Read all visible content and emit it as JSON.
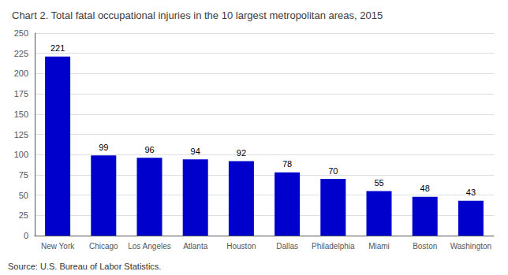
{
  "chart_data": {
    "type": "bar",
    "title": "Chart 2. Total fatal occupational injuries in the 10 largest metropolitan areas, 2015",
    "categories": [
      "New York",
      "Chicago",
      "Los Angeles",
      "Atlanta",
      "Houston",
      "Dallas",
      "Philadelphia",
      "Miami",
      "Boston",
      "Washington"
    ],
    "values": [
      221,
      99,
      96,
      94,
      92,
      78,
      70,
      55,
      48,
      43
    ],
    "color": "#0000cc",
    "ylim": [
      0,
      250
    ],
    "yticks": [
      0,
      25,
      50,
      75,
      100,
      125,
      150,
      175,
      200,
      225,
      250
    ],
    "grid": true,
    "data_labels": true,
    "annotations": [
      "Source: U.S. Bureau of Labor Statistics."
    ]
  }
}
